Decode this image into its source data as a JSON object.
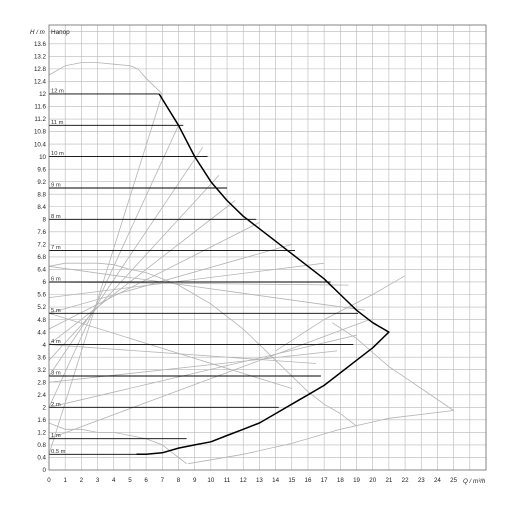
{
  "chart_data": {
    "type": "line",
    "title": "Напор",
    "ylabel": "H / m",
    "xlabel": "Q / m³/h",
    "xlim": [
      0,
      27
    ],
    "ylim": [
      0,
      14.2
    ],
    "grid": true,
    "x_ticks": [
      "0",
      "1",
      "2",
      "3",
      "4",
      "5",
      "6",
      "7",
      "8",
      "9",
      "10",
      "11",
      "12",
      "13",
      "14",
      "15",
      "16",
      "17",
      "18",
      "19",
      "20",
      "21",
      "22",
      "23",
      "24",
      "25"
    ],
    "y_ticks": [
      "0",
      "0.4",
      "0.8",
      "1.2",
      "1.6",
      "2",
      "2.4",
      "2.8",
      "3.2",
      "3.6",
      "4",
      "4.4",
      "4.8",
      "5.2",
      "5.6",
      "6",
      "6.4",
      "6.8",
      "7.2",
      "7.6",
      "8",
      "8.4",
      "8.8",
      "9.2",
      "9.6",
      "10",
      "10.4",
      "10.8",
      "11.2",
      "11.6",
      "12",
      "12.4",
      "12.8",
      "13.2",
      "13.6"
    ],
    "colors": {
      "curves": "#000000",
      "envelope": "#000000",
      "helper": "#b4b4b4",
      "grid": "#b8b8b8"
    },
    "series": [
      {
        "name": "12 m",
        "values": [
          [
            0,
            12
          ],
          [
            6.8,
            12
          ]
        ]
      },
      {
        "name": "11 m",
        "values": [
          [
            0,
            11
          ],
          [
            8.3,
            11
          ]
        ]
      },
      {
        "name": "10 m",
        "values": [
          [
            0,
            10
          ],
          [
            9.8,
            10
          ]
        ]
      },
      {
        "name": "9 m",
        "values": [
          [
            0,
            9
          ],
          [
            11,
            9
          ]
        ]
      },
      {
        "name": "8 m",
        "values": [
          [
            0,
            8
          ],
          [
            12.8,
            8
          ]
        ]
      },
      {
        "name": "7 m",
        "values": [
          [
            0,
            7
          ],
          [
            15.2,
            7
          ]
        ]
      },
      {
        "name": "6 m",
        "values": [
          [
            0,
            6
          ],
          [
            17.4,
            6
          ]
        ]
      },
      {
        "name": "5 m",
        "values": [
          [
            0,
            5
          ],
          [
            19.1,
            5
          ]
        ]
      },
      {
        "name": "4 m",
        "values": [
          [
            0,
            4
          ],
          [
            18.8,
            4
          ]
        ]
      },
      {
        "name": "3 m",
        "values": [
          [
            0,
            3
          ],
          [
            16.8,
            3
          ]
        ]
      },
      {
        "name": "2 m",
        "values": [
          [
            0,
            2
          ],
          [
            14.2,
            2
          ]
        ]
      },
      {
        "name": "1 m",
        "values": [
          [
            0,
            1
          ],
          [
            8.5,
            1
          ]
        ]
      },
      {
        "name": "0.5 m",
        "values": [
          [
            0,
            0.5
          ],
          [
            5.4,
            0.5
          ]
        ]
      }
    ],
    "envelope": [
      [
        6.8,
        12
      ],
      [
        8,
        11
      ],
      [
        9,
        10
      ],
      [
        10,
        9.2
      ],
      [
        11,
        8.6
      ],
      [
        12,
        8.1
      ],
      [
        13,
        7.7
      ],
      [
        14,
        7.3
      ],
      [
        15,
        6.9
      ],
      [
        16,
        6.5
      ],
      [
        17,
        6.1
      ],
      [
        18,
        5.6
      ],
      [
        19,
        5.1
      ],
      [
        20,
        4.7
      ],
      [
        21,
        4.4
      ],
      [
        20,
        3.9
      ],
      [
        19,
        3.5
      ],
      [
        18,
        3.1
      ],
      [
        17,
        2.7
      ],
      [
        16,
        2.4
      ],
      [
        15,
        2.1
      ],
      [
        14,
        1.8
      ],
      [
        13,
        1.5
      ],
      [
        12,
        1.3
      ],
      [
        11,
        1.1
      ],
      [
        10,
        0.9
      ],
      [
        9,
        0.8
      ],
      [
        8,
        0.7
      ],
      [
        7,
        0.55
      ],
      [
        6,
        0.5
      ],
      [
        5.4,
        0.5
      ]
    ],
    "helper_curves": [
      [
        [
          0,
          12.6
        ],
        [
          1,
          12.9
        ],
        [
          2,
          13
        ],
        [
          3,
          13
        ],
        [
          4,
          12.95
        ],
        [
          5,
          12.9
        ],
        [
          5.5,
          12.8
        ],
        [
          6,
          12.5
        ],
        [
          7,
          12
        ]
      ],
      [
        [
          0,
          6.5
        ],
        [
          1,
          6.6
        ],
        [
          2,
          6.6
        ],
        [
          3,
          6.6
        ],
        [
          4,
          6.55
        ],
        [
          5,
          6.4
        ],
        [
          6,
          6.3
        ],
        [
          7,
          6.1
        ],
        [
          8,
          5.9
        ],
        [
          9,
          5.6
        ],
        [
          10,
          5.3
        ],
        [
          11,
          4.9
        ],
        [
          12,
          4.5
        ],
        [
          13,
          4
        ],
        [
          14,
          3.5
        ],
        [
          15,
          3
        ],
        [
          16,
          2.5
        ],
        [
          17,
          2.1
        ],
        [
          18,
          1.8
        ],
        [
          19,
          1.4
        ]
      ],
      [
        [
          0,
          1.5
        ],
        [
          1,
          1.3
        ],
        [
          2,
          1.3
        ],
        [
          3,
          1.2
        ],
        [
          4,
          1.2
        ],
        [
          5,
          1.1
        ],
        [
          6,
          1
        ],
        [
          7,
          0.8
        ],
        [
          7.5,
          0.6
        ],
        [
          8,
          0.4
        ],
        [
          8.5,
          0.2
        ]
      ],
      [
        [
          8.6,
          0.2
        ],
        [
          12,
          0.5
        ],
        [
          15,
          0.85
        ],
        [
          18,
          1.3
        ],
        [
          21,
          1.65
        ],
        [
          25,
          1.9
        ]
      ],
      [
        [
          25,
          1.9
        ],
        [
          23,
          2.6
        ],
        [
          21,
          3.3
        ],
        [
          19,
          4.2
        ],
        [
          17.5,
          4.7
        ]
      ],
      [
        [
          14,
          3.8
        ],
        [
          17,
          4.8
        ],
        [
          20,
          5.6
        ],
        [
          22,
          6.2
        ]
      ],
      [
        [
          0,
          0.5
        ],
        [
          7,
          12
        ]
      ],
      [
        [
          0,
          2
        ],
        [
          8,
          11
        ]
      ],
      [
        [
          0,
          3
        ],
        [
          9.5,
          10.3
        ]
      ],
      [
        [
          0,
          3.5
        ],
        [
          10.5,
          9.4
        ]
      ],
      [
        [
          0,
          4
        ],
        [
          11.5,
          8.6
        ]
      ],
      [
        [
          0,
          4.5
        ],
        [
          13,
          7.9
        ]
      ],
      [
        [
          0,
          5
        ],
        [
          15,
          7.2
        ]
      ],
      [
        [
          0,
          5.5
        ],
        [
          17,
          6.6
        ]
      ],
      [
        [
          0,
          6
        ],
        [
          18.5,
          5.9
        ]
      ],
      [
        [
          0,
          6.5
        ],
        [
          19.5,
          5.1
        ]
      ],
      [
        [
          0,
          1
        ],
        [
          19.8,
          4.8
        ]
      ],
      [
        [
          0,
          2
        ],
        [
          19,
          4.3
        ]
      ],
      [
        [
          0,
          2.8
        ],
        [
          17.8,
          3.8
        ]
      ],
      [
        [
          0,
          4
        ],
        [
          16.5,
          3.4
        ]
      ],
      [
        [
          0,
          5
        ],
        [
          15,
          2.6
        ]
      ]
    ]
  }
}
